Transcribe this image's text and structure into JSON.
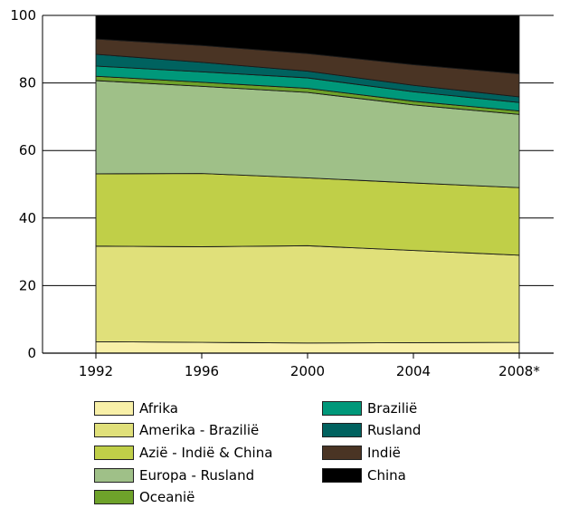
{
  "chart_data": {
    "type": "area",
    "stacked": true,
    "x": [
      "1992",
      "1996",
      "2000",
      "2004",
      "2008*"
    ],
    "title": "",
    "xlabel": "",
    "ylabel": "",
    "ylim": [
      0,
      100
    ],
    "yticks": [
      0,
      20,
      40,
      60,
      80,
      100
    ],
    "grid": true,
    "legend": "bottom",
    "series": [
      {
        "name": "Afrika",
        "color": "#f8f0a8",
        "values": [
          3.4,
          3.2,
          3.0,
          3.1,
          3.2
        ]
      },
      {
        "name": "Amerika - Brazilië",
        "color": "#e0e07a",
        "values": [
          28.3,
          28.3,
          28.8,
          27.3,
          25.8
        ]
      },
      {
        "name": "Azië - Indië & China",
        "color": "#c0cf48",
        "values": [
          21.4,
          21.7,
          20.1,
          20.0,
          20.0
        ]
      },
      {
        "name": "Europa - Rusland",
        "color": "#9fc088",
        "values": [
          27.6,
          25.8,
          25.3,
          23.1,
          21.7
        ]
      },
      {
        "name": "Oceanië",
        "color": "#6ea22a",
        "values": [
          1.3,
          1.2,
          1.2,
          1.1,
          1.0
        ]
      },
      {
        "name": "Brazilië",
        "color": "#00987a",
        "values": [
          3.0,
          3.1,
          3.1,
          2.8,
          2.5
        ]
      },
      {
        "name": "Rusland",
        "color": "#00625f",
        "values": [
          3.5,
          2.8,
          2.0,
          1.9,
          1.7
        ]
      },
      {
        "name": "Indië",
        "color": "#4a3424",
        "values": [
          4.5,
          5.0,
          5.2,
          6.1,
          6.8
        ]
      },
      {
        "name": "China",
        "color": "#000000",
        "values": [
          7.0,
          8.9,
          11.3,
          14.6,
          17.3
        ]
      }
    ]
  },
  "legend_items": [
    {
      "name": "Afrika",
      "color": "#f8f0a8"
    },
    {
      "name": "Amerika - Brazilië",
      "color": "#e0e07a"
    },
    {
      "name": "Azië - Indië & China",
      "color": "#c0cf48"
    },
    {
      "name": "Europa - Rusland",
      "color": "#9fc088"
    },
    {
      "name": "Oceanië",
      "color": "#6ea22a"
    },
    {
      "name": "Brazilië",
      "color": "#00987a"
    },
    {
      "name": "Rusland",
      "color": "#00625f"
    },
    {
      "name": "Indië",
      "color": "#4a3424"
    },
    {
      "name": "China",
      "color": "#000000"
    }
  ]
}
